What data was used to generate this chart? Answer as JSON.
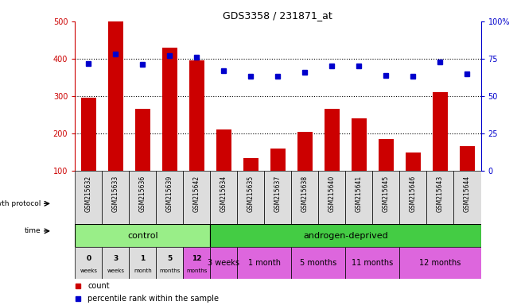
{
  "title": "GDS3358 / 231871_at",
  "samples": [
    "GSM215632",
    "GSM215633",
    "GSM215636",
    "GSM215639",
    "GSM215642",
    "GSM215634",
    "GSM215635",
    "GSM215637",
    "GSM215638",
    "GSM215640",
    "GSM215641",
    "GSM215645",
    "GSM215646",
    "GSM215643",
    "GSM215644"
  ],
  "counts": [
    295,
    500,
    265,
    430,
    395,
    210,
    135,
    160,
    205,
    265,
    240,
    185,
    150,
    310,
    165
  ],
  "percentiles": [
    72,
    78,
    71,
    77,
    76,
    67,
    63,
    63,
    66,
    70,
    70,
    64,
    63,
    73,
    65
  ],
  "bar_color": "#cc0000",
  "dot_color": "#0000cc",
  "ymin": 100,
  "ymax": 500,
  "yticks": [
    100,
    200,
    300,
    400,
    500
  ],
  "y2min": 0,
  "y2max": 100,
  "y2ticks": [
    0,
    25,
    50,
    75,
    100
  ],
  "growth_protocol_label": "growth protocol",
  "time_label": "time",
  "control_label": "control",
  "androgen_label": "androgen-deprived",
  "control_color": "#99ee88",
  "androgen_color": "#44cc44",
  "time_gray_color": "#dddddd",
  "time_pink_color": "#dd66dd",
  "time_control_colors": [
    "#dddddd",
    "#dddddd",
    "#dddddd",
    "#dddddd",
    "#dd66dd"
  ],
  "time_control_labels_top": [
    "0",
    "3",
    "1",
    "5",
    "12"
  ],
  "time_control_labels_bot": [
    "weeks",
    "weeks",
    "month",
    "months",
    "months"
  ],
  "control_n": 5,
  "androgen_n": 10,
  "androgen_groups": [
    {
      "label": "3 weeks",
      "count": 1
    },
    {
      "label": "1 month",
      "count": 2
    },
    {
      "label": "5 months",
      "count": 2
    },
    {
      "label": "11 months",
      "count": 2
    },
    {
      "label": "12 months",
      "count": 3
    }
  ],
  "legend_count_label": "count",
  "legend_pct_label": "percentile rank within the sample",
  "bg_color": "#ffffff",
  "sample_box_color": "#dddddd"
}
